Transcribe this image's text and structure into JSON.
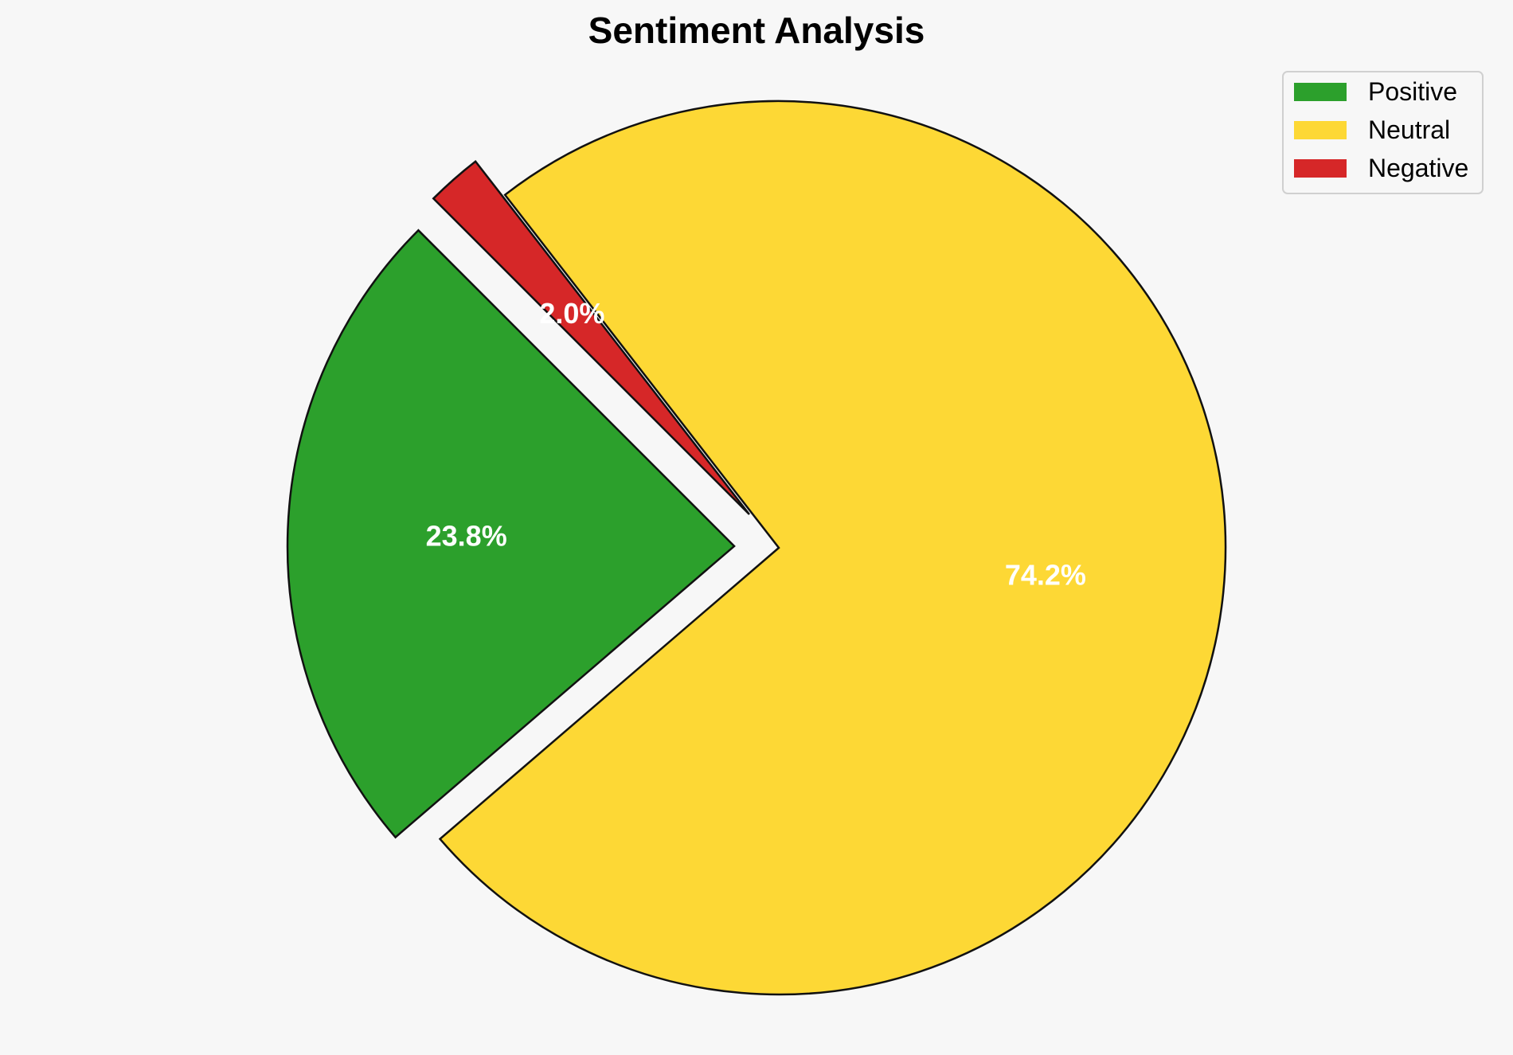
{
  "chart_data": {
    "type": "pie",
    "title": "Sentiment Analysis",
    "slices": [
      {
        "label": "Positive",
        "value": 23.8,
        "display": "23.8%",
        "color": "#2ca02c",
        "exploded": true
      },
      {
        "label": "Neutral",
        "value": 74.2,
        "display": "74.2%",
        "color": "#fdd835",
        "exploded": false
      },
      {
        "label": "Negative",
        "value": 2.0,
        "display": "2.0%",
        "color": "#d62728",
        "exploded": true
      }
    ],
    "legend": {
      "placement": "top-right",
      "entries": [
        "Positive",
        "Neutral",
        "Negative"
      ]
    }
  }
}
